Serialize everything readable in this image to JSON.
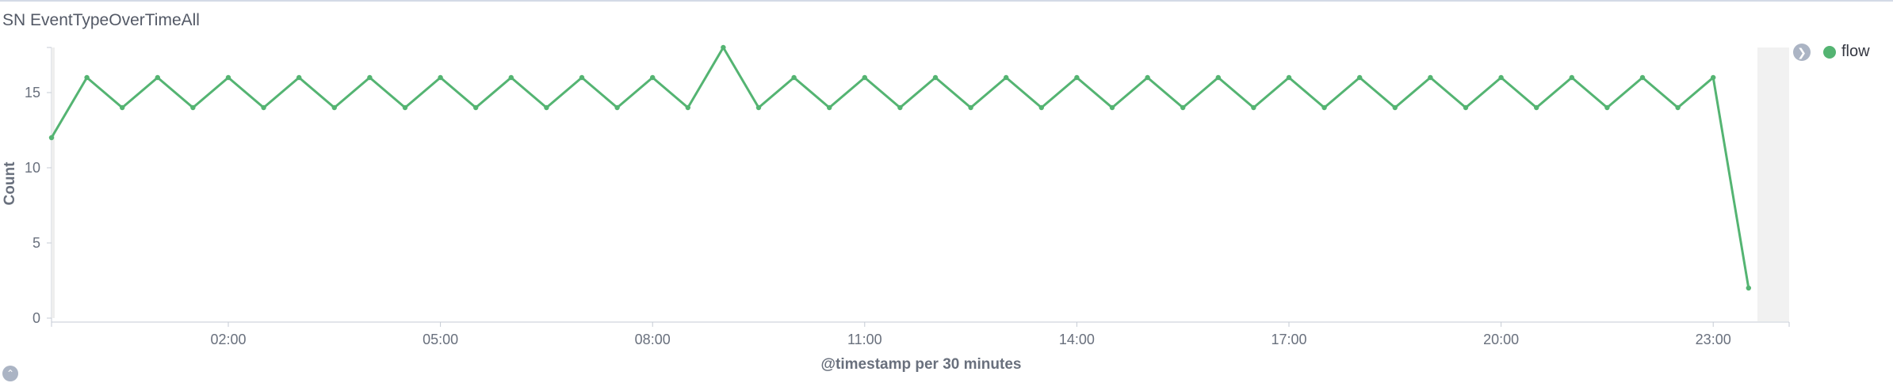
{
  "panel": {
    "title": "SN EventTypeOverTimeAll"
  },
  "legend": {
    "toggle_icon": "chevron-right-icon",
    "items": [
      {
        "label": "flow",
        "color": "#54b472"
      }
    ]
  },
  "collapse_icon": "chevron-up-icon",
  "chart_data": {
    "type": "line",
    "title": "",
    "xlabel": "@timestamp per 30 minutes",
    "ylabel": "Count",
    "ylim": [
      0,
      18
    ],
    "yticks": [
      0,
      5,
      10,
      15
    ],
    "xticks": [
      "02:00",
      "05:00",
      "08:00",
      "11:00",
      "14:00",
      "17:00",
      "20:00",
      "23:00"
    ],
    "x": [
      "-0:30",
      "00:00",
      "00:30",
      "01:00",
      "01:30",
      "02:00",
      "02:30",
      "03:00",
      "03:30",
      "04:00",
      "04:30",
      "05:00",
      "05:30",
      "06:00",
      "06:30",
      "07:00",
      "07:30",
      "08:00",
      "08:30",
      "09:00",
      "09:30",
      "10:00",
      "10:30",
      "11:00",
      "11:30",
      "12:00",
      "12:30",
      "13:00",
      "13:30",
      "14:00",
      "14:30",
      "15:00",
      "15:30",
      "16:00",
      "16:30",
      "17:00",
      "17:30",
      "18:00",
      "18:30",
      "19:00",
      "19:30",
      "20:00",
      "20:30",
      "21:00",
      "21:30",
      "22:00",
      "22:30",
      "23:00",
      "23:30"
    ],
    "series": [
      {
        "name": "flow",
        "color": "#54b472",
        "values": [
          12,
          16,
          14,
          16,
          14,
          16,
          14,
          16,
          14,
          16,
          14,
          16,
          14,
          16,
          14,
          16,
          14,
          16,
          14,
          18,
          14,
          16,
          14,
          16,
          14,
          16,
          14,
          16,
          14,
          16,
          14,
          16,
          14,
          16,
          14,
          16,
          14,
          16,
          14,
          16,
          14,
          16,
          14,
          16,
          14,
          16,
          14,
          16,
          2
        ]
      }
    ],
    "grid": false,
    "legend_position": "top-right"
  }
}
